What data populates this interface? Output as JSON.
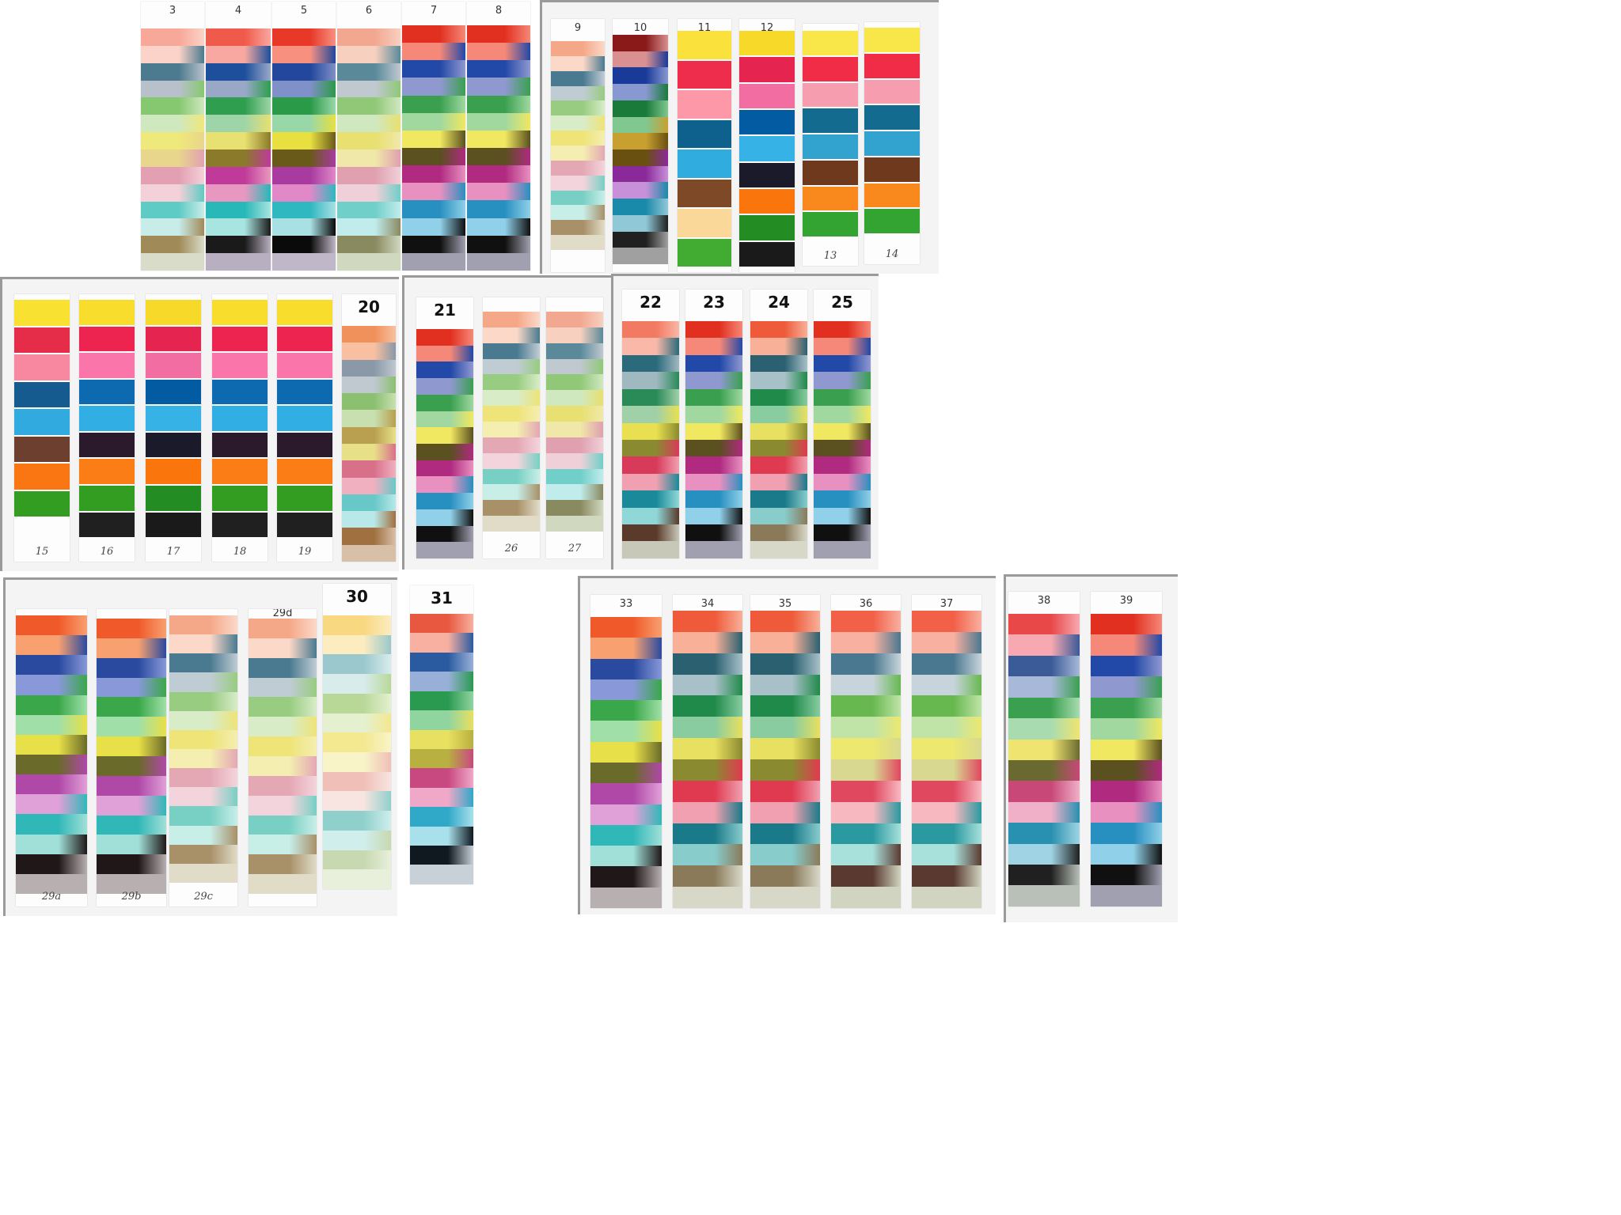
{
  "palettes": {
    "ink_full": [
      "#f05a4a",
      "#f8a8a0",
      "#1d4f9c",
      "#9aa8c8",
      "#2f9e4f",
      "#9ed5a8",
      "#e8e070",
      "#8a7a2a",
      "#c03a9a",
      "#e898c0",
      "#28b8b8",
      "#a8e4e0",
      "#1a1a1a",
      "#b8b0c0"
    ],
    "ink_pastel": [
      "#f7a898",
      "#fbd3c8",
      "#4c7a8e",
      "#b8c0cc",
      "#86c870",
      "#cfe8bf",
      "#efe87a",
      "#e8d68c",
      "#e2a0b2",
      "#f4d0d8",
      "#5ecbc4",
      "#c8ece8",
      "#a08a58",
      "#d8dcc8"
    ],
    "ink_bright": [
      "#e83828",
      "#f89080",
      "#22479c",
      "#8090c8",
      "#2a9a48",
      "#98d8a8",
      "#e8e040",
      "#6a5a1a",
      "#a83aa0",
      "#e088c8",
      "#30b8c0",
      "#a8e0e4",
      "#0a0a0a",
      "#c0b8c8"
    ],
    "ink_teal": [
      "#f27a62",
      "#f9b8a8",
      "#2a6a7a",
      "#a0b8c0",
      "#2a8a58",
      "#a0d0a8",
      "#e8e050",
      "#8a8a30",
      "#d83a5a",
      "#f0a0b0",
      "#1a8a9a",
      "#90d8d8",
      "#5a3a2a",
      "#c8c8b8"
    ],
    "ink_blue_red": [
      "#e23020",
      "#f58878",
      "#2248a8",
      "#9098d0",
      "#3aa050",
      "#a0d8a0",
      "#f0e860",
      "#5a5020",
      "#b02a80",
      "#e890c0",
      "#2890c0",
      "#90d0e8",
      "#101010",
      "#a0a0b0"
    ],
    "dye_warm": [
      "#8a1a1a",
      "#d89090",
      "#1a3a9a",
      "#8898d0",
      "#1a7a3a",
      "#80c890",
      "#c8a030",
      "#6a5010",
      "#8a2a9a",
      "#c890d8",
      "#1a8aaa",
      "#90c8d8",
      "#202020",
      "#a0a0a0"
    ],
    "hand_a": [
      "#f6e040",
      "#d8304a",
      "#f08aa0",
      "#1a5a8a",
      "#3aa8d8",
      "#6a4030",
      "#f0781e",
      "#3a9a2a"
    ],
    "hand_b": [
      "#f4d838",
      "#d82850",
      "#e870a0",
      "#0a5a9a",
      "#40b0e0",
      "#1a1a2a",
      "#f07818",
      "#2a8a2a",
      "#1a1a1a"
    ],
    "hand_c": [
      "#f7e04a",
      "#e0304c",
      "#f59aa8",
      "#146088",
      "#3aaad8",
      "#7a4a2a",
      "#f6d8a0",
      "#48a83a"
    ],
    "hand_d": [
      "#f7e658",
      "#e23048",
      "#f0a0b0",
      "#1a6a8a",
      "#3aa0c8",
      "#6a3a20",
      "#f08a28",
      "#3aa038"
    ],
    "hand_e": [
      "#f5dc3c",
      "#e02850",
      "#f078a8",
      "#1468a8",
      "#3aacdc",
      "#2a1a2a",
      "#f08020",
      "#3a9a2a",
      "#202020"
    ],
    "pastel_orange": [
      "#f0905a",
      "#f8c0a0",
      "#8a98a8",
      "#c0c8d0",
      "#8ac070",
      "#c8e0b0",
      "#b8a050",
      "#e8e088",
      "#d8708a",
      "#f0b0c0",
      "#68c8c8",
      "#b8e8e8",
      "#a07040",
      "#d8c0a8"
    ],
    "muted_mid": [
      "#f2a890",
      "#f8d0c0",
      "#5a8a9a",
      "#c0c8d0",
      "#90c878",
      "#d0e8c0",
      "#e8e070",
      "#f0e8a8",
      "#e0a0b0",
      "#f0d0d8",
      "#70cfc8",
      "#c0ecec",
      "#8a8a60",
      "#d0d8c0"
    ],
    "spotty_orange": [
      "#f05a2a",
      "#f8a070",
      "#2a4aa0",
      "#8898d8",
      "#3aa84a",
      "#a0e0a8",
      "#e8e048",
      "#6a6a2a",
      "#b048a8",
      "#e0a0d8",
      "#30b8b8",
      "#a0e0d8",
      "#201818",
      "#b8b0b0"
    ],
    "peach_soft": [
      "#f5a888",
      "#fbd8c8",
      "#4a7a90",
      "#c0ccd4",
      "#98cc80",
      "#d8ecc8",
      "#eee478",
      "#f4eeb0",
      "#e4a8b4",
      "#f4d4dc",
      "#78d0c4",
      "#c8eee8",
      "#a89068",
      "#e0dcc8"
    ],
    "yellow_pale": [
      "#f8d880",
      "#fcecc0",
      "#9ac8cc",
      "#d8ecec",
      "#b8d898",
      "#e4f0d0",
      "#f4e890",
      "#f8f4c8",
      "#f0c0b8",
      "#f8e4e0",
      "#90d0cc",
      "#d0eeec",
      "#c8d8b0",
      "#e8f0dc"
    ],
    "coral_strip": [
      "#e85840",
      "#f8b0a0",
      "#2a5aa0",
      "#98b0d8",
      "#2a9a50",
      "#90d4a0",
      "#e8e060",
      "#b8b040",
      "#c84880",
      "#f0a8c8",
      "#30a8c8",
      "#a8e0ec",
      "#101820",
      "#c8d0d8"
    ],
    "teal_mix": [
      "#ee5a3a",
      "#f8b098",
      "#2a6070",
      "#a8c0c8",
      "#208a4a",
      "#88cca0",
      "#e8e060",
      "#8a8a30",
      "#e03a50",
      "#f0a0b0",
      "#1a7a8a",
      "#88cccc",
      "#8a7a5a",
      "#d8d8c8"
    ],
    "green_coral": [
      "#f26048",
      "#f8b0a0",
      "#4a7890",
      "#c8d4dc",
      "#68b850",
      "#c0e4a8",
      "#ece870",
      "#d8d890",
      "#e04860",
      "#f8b8c0",
      "#2a9aa0",
      "#a8e0dc",
      "#5a3a30",
      "#d0d4c0"
    ],
    "pink_red": [
      "#e84848",
      "#f8a8b0",
      "#3a5a98",
      "#a8b8d8",
      "#3aa050",
      "#a8dcb0",
      "#f0e470",
      "#6a6a30",
      "#c84878",
      "#f0b0c8",
      "#2890b0",
      "#a0d4e4",
      "#202020",
      "#b8c0b8"
    ]
  },
  "panels": [
    {
      "strips": [
        {
          "label": "3",
          "pal": "ink_pastel",
          "size": "small"
        },
        {
          "label": "4",
          "pal": "ink_full",
          "size": "small"
        },
        {
          "label": "5",
          "pal": "ink_bright",
          "size": "small"
        },
        {
          "label": "6",
          "pal": "muted_mid",
          "size": "small"
        },
        {
          "label": "7",
          "pal": "ink_blue_red",
          "size": "small"
        },
        {
          "label": "8",
          "pal": "ink_blue_red",
          "size": "small"
        }
      ]
    },
    {
      "strips": [
        {
          "label": "9",
          "pal": "peach_soft",
          "size": "small"
        },
        {
          "label": "10",
          "pal": "dye_warm",
          "size": "small"
        },
        {
          "label": "11",
          "pal": "hand_c",
          "size": "small"
        },
        {
          "label": "12",
          "pal": "hand_b",
          "size": "small"
        },
        {
          "label": "13",
          "pal": "hand_d",
          "size": "small"
        },
        {
          "label": "14",
          "pal": "hand_d",
          "size": "small"
        }
      ]
    },
    {
      "strips": [
        {
          "label": "15",
          "pal": "hand_a",
          "size": "small"
        },
        {
          "label": "16",
          "pal": "hand_e",
          "size": "small"
        },
        {
          "label": "17",
          "pal": "hand_b",
          "size": "small"
        },
        {
          "label": "18",
          "pal": "hand_e",
          "size": "small"
        },
        {
          "label": "19",
          "pal": "hand_e",
          "size": "small"
        },
        {
          "label": "20",
          "pal": "pastel_orange",
          "size": "big"
        }
      ]
    },
    {
      "strips": [
        {
          "label": "21",
          "pal": "ink_blue_red",
          "size": "big"
        },
        {
          "label": "26",
          "pal": "peach_soft",
          "size": "small"
        },
        {
          "label": "27",
          "pal": "muted_mid",
          "size": "small"
        }
      ]
    },
    {
      "strips": [
        {
          "label": "22",
          "pal": "ink_teal",
          "size": "big"
        },
        {
          "label": "23",
          "pal": "ink_blue_red",
          "size": "big"
        },
        {
          "label": "24",
          "pal": "teal_mix",
          "size": "big"
        },
        {
          "label": "25",
          "pal": "ink_blue_red",
          "size": "big"
        }
      ]
    },
    {
      "strips": [
        {
          "label": "29a",
          "pal": "spotty_orange",
          "size": "small"
        },
        {
          "label": "29b",
          "pal": "spotty_orange",
          "size": "small"
        },
        {
          "label": "29c",
          "pal": "peach_soft",
          "size": "small"
        },
        {
          "label": "29d",
          "pal": "peach_soft",
          "size": "small"
        },
        {
          "label": "30",
          "pal": "yellow_pale",
          "size": "big"
        }
      ]
    },
    {
      "strips": [
        {
          "label": "31",
          "pal": "coral_strip",
          "size": "big"
        }
      ]
    },
    {
      "strips": [
        {
          "label": "33",
          "pal": "spotty_orange",
          "size": "small"
        },
        {
          "label": "34",
          "pal": "teal_mix",
          "size": "small"
        },
        {
          "label": "35",
          "pal": "teal_mix",
          "size": "small"
        },
        {
          "label": "36",
          "pal": "green_coral",
          "size": "small"
        },
        {
          "label": "37",
          "pal": "green_coral",
          "size": "small"
        }
      ]
    },
    {
      "strips": [
        {
          "label": "38",
          "pal": "pink_red",
          "size": "small"
        },
        {
          "label": "39",
          "pal": "ink_blue_red",
          "size": "small"
        }
      ]
    }
  ]
}
